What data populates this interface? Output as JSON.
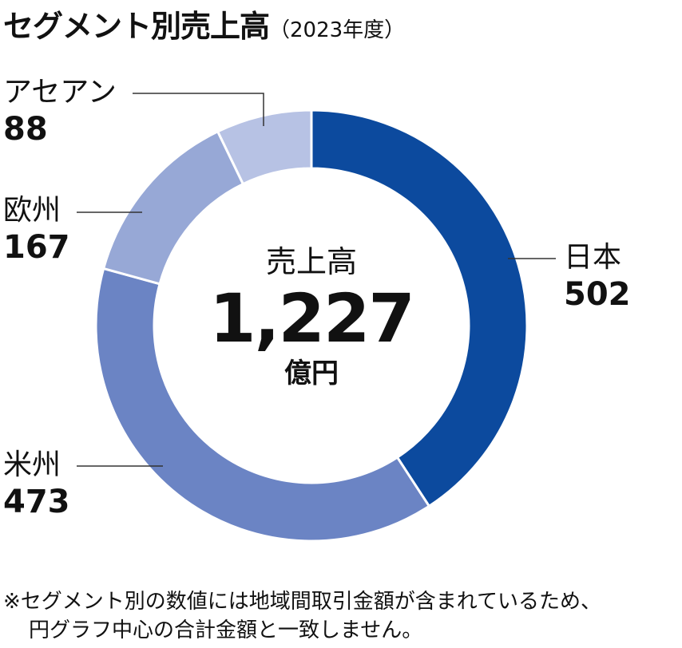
{
  "title": {
    "main": "セグメント別売上高",
    "sub": "（2023年度）"
  },
  "center": {
    "label": "売上高",
    "total": "1,227",
    "unit": "億円"
  },
  "note": [
    "※セグメント別の数値には地域間取引金額が含まれているため、",
    "円グラフ中心の合計金額と一致しません。"
  ],
  "chart_data": {
    "type": "pie",
    "donut": true,
    "title": "セグメント別売上高",
    "subtitle": "（2023年度）",
    "unit": "億円",
    "total": 1227,
    "categories": [
      "日本",
      "米州",
      "欧州",
      "アセアン"
    ],
    "values": [
      502,
      473,
      167,
      88
    ],
    "colors": [
      "#0c4a9e",
      "#6b84c4",
      "#97a8d6",
      "#b7c2e4"
    ]
  }
}
